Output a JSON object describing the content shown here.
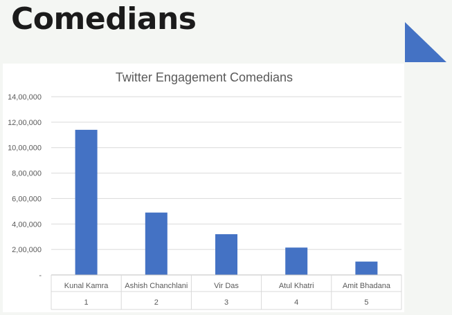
{
  "slide": {
    "title": "Comedians",
    "accent_color": "#4472c4"
  },
  "chart_data": {
    "type": "bar",
    "title": "Twitter Engagement Comedians",
    "categories": [
      "Kunal Kamra",
      "Ashish Chanchlani",
      "Vir Das",
      "Atul Khatri",
      "Amit Bhadana"
    ],
    "category_index": [
      "1",
      "2",
      "3",
      "4",
      "5"
    ],
    "series": [
      {
        "values": [
          1140000,
          490000,
          320000,
          215000,
          105000
        ],
        "color": "#4472c4"
      }
    ],
    "ylim": [
      0,
      1400000
    ],
    "yticks": [
      0,
      200000,
      400000,
      600000,
      800000,
      1000000,
      1200000,
      1400000
    ],
    "ytick_labels": [
      "-",
      "2,00,000",
      "4,00,000",
      "6,00,000",
      "8,00,000",
      "10,00,000",
      "12,00,000",
      "14,00,000"
    ],
    "grid": true,
    "legend": "none"
  }
}
